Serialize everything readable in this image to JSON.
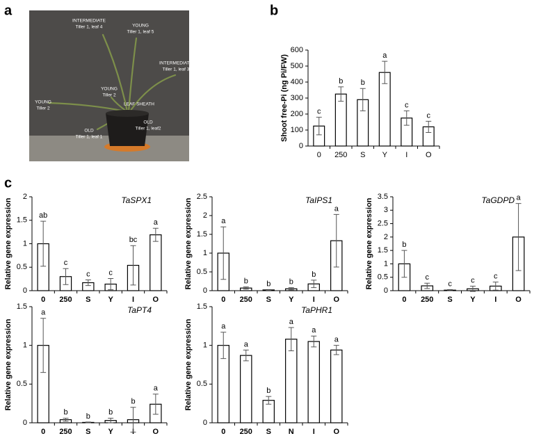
{
  "panels": [
    "a",
    "b",
    "c"
  ],
  "photo": {
    "labels": [
      [
        "INTERMEDIATE",
        "Tiller 1, leaf 4"
      ],
      [
        "YOUNG",
        "Tiller 1, leaf 5"
      ],
      [
        "INTERMEDIATE",
        "Tiller 1, leaf 3"
      ],
      [
        "YOUNG",
        "Tiller 2"
      ],
      [
        "YOUNG",
        "Tiller 2"
      ],
      [
        "LEAF SHEATH"
      ],
      [
        "OLD",
        "Tiller 1, leaf2"
      ],
      [
        "OLD",
        "Tiller 1, leaf 1"
      ]
    ]
  },
  "chart_data": [
    {
      "type": "bar",
      "y_label": "Shoot free-Pi (ng Pi/FW)",
      "categories": [
        "0",
        "250",
        "S",
        "Y",
        "I",
        "O"
      ],
      "values": [
        125,
        325,
        290,
        460,
        175,
        120
      ],
      "errors": [
        55,
        45,
        70,
        70,
        45,
        35
      ],
      "letters": [
        "c",
        "b",
        "b",
        "a",
        "c",
        "c"
      ],
      "color": "#ffffff",
      "ylim": [
        0,
        600
      ],
      "yticks": [
        0,
        100,
        200,
        300,
        400,
        500,
        600
      ]
    },
    {
      "type": "bar",
      "title": "TaSPX1",
      "y_label": "Relative gene expression",
      "categories": [
        "0",
        "250",
        "S",
        "Y",
        "I",
        "O"
      ],
      "values": [
        1.0,
        0.3,
        0.17,
        0.14,
        0.54,
        1.19
      ],
      "errors": [
        0.48,
        0.17,
        0.06,
        0.12,
        0.42,
        0.14
      ],
      "letters": [
        "ab",
        "c",
        "c",
        "c",
        "bc",
        "a"
      ],
      "color": "#ffffff",
      "ylim": [
        0,
        2
      ],
      "yticks": [
        0,
        0.5,
        1,
        1.5,
        2
      ]
    },
    {
      "type": "bar",
      "title": "TaIPS1",
      "y_label": "Relative gene expression",
      "categories": [
        "0",
        "250",
        "S",
        "Y",
        "I",
        "O"
      ],
      "values": [
        1.0,
        0.07,
        0.02,
        0.05,
        0.18,
        1.33
      ],
      "errors": [
        0.7,
        0.03,
        0.01,
        0.03,
        0.1,
        0.7
      ],
      "letters": [
        "a",
        "b",
        "b",
        "b",
        "b",
        "a"
      ],
      "color": "#ffffff",
      "ylim": [
        0,
        2.5
      ],
      "yticks": [
        0,
        0.5,
        1,
        1.5,
        2,
        2.5
      ]
    },
    {
      "type": "bar",
      "title": "TaGDPD",
      "y_label": "Relative gene expression",
      "categories": [
        "0",
        "250",
        "S",
        "Y",
        "I",
        "O"
      ],
      "values": [
        1.0,
        0.18,
        0.02,
        0.07,
        0.17,
        2.0
      ],
      "errors": [
        0.5,
        0.1,
        0.02,
        0.1,
        0.15,
        1.25
      ],
      "letters": [
        "b",
        "c",
        "c",
        "c",
        "c",
        "a"
      ],
      "color": "#ffffff",
      "ylim": [
        0,
        3.5
      ],
      "yticks": [
        0,
        0.5,
        1,
        1.5,
        2,
        2.5,
        3,
        3.5
      ]
    },
    {
      "type": "bar",
      "title": "TaPT4",
      "y_label": "Relative gene expression",
      "categories": [
        "0",
        "250",
        "S",
        "Y",
        "I",
        "O"
      ],
      "values": [
        1.0,
        0.04,
        0.005,
        0.03,
        0.04,
        0.24
      ],
      "errors": [
        0.35,
        0.02,
        0.005,
        0.03,
        0.16,
        0.13
      ],
      "letters": [
        "a",
        "b",
        "b",
        "b",
        "b",
        "a"
      ],
      "color": "#ffffff",
      "ylim": [
        0,
        1.5
      ],
      "yticks": [
        0,
        0.5,
        1,
        1.5
      ]
    },
    {
      "type": "bar",
      "title": "TaPHR1",
      "y_label": "Relative gene expression",
      "categories": [
        "0",
        "250",
        "S",
        "N",
        "I",
        "O"
      ],
      "values": [
        1.0,
        0.87,
        0.29,
        1.08,
        1.05,
        0.94
      ],
      "errors": [
        0.17,
        0.07,
        0.05,
        0.15,
        0.07,
        0.06
      ],
      "letters": [
        "a",
        "a",
        "b",
        "a",
        "a",
        "a"
      ],
      "color": "#ffffff",
      "ylim": [
        0,
        1.5
      ],
      "yticks": [
        0,
        0.5,
        1,
        1.5
      ]
    }
  ]
}
